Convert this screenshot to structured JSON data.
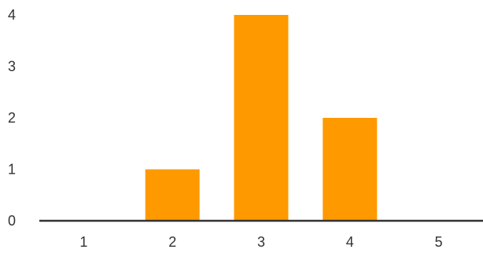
{
  "chart_data": {
    "type": "bar",
    "categories": [
      "1",
      "2",
      "3",
      "4",
      "5"
    ],
    "values": [
      0,
      1,
      4,
      2,
      0
    ],
    "ylim": [
      0,
      4
    ],
    "yticks": [
      "0",
      "1",
      "2",
      "3",
      "4"
    ],
    "grid": false,
    "legend": "none",
    "bar_color": "#FF9900",
    "axis_color": "#333333"
  }
}
